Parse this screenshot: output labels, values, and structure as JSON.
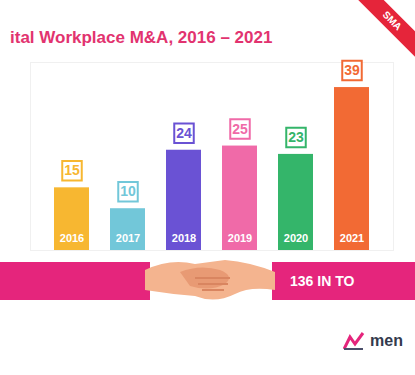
{
  "chart_data": {
    "type": "bar",
    "title": "ital Workplace M&A, 2016 – 2021",
    "categories": [
      "2016",
      "2017",
      "2018",
      "2019",
      "2020",
      "2021"
    ],
    "values": [
      15,
      10,
      24,
      25,
      23,
      39
    ],
    "colors": [
      "#f7b731",
      "#72c7d9",
      "#6a52d4",
      "#f06aa8",
      "#34b56a",
      "#f26a34"
    ],
    "ylim": [
      0,
      45
    ],
    "data_labels": true,
    "tick_labels": false,
    "grid": false,
    "annotations": [
      "136 IN TO",
      "SMA",
      "men"
    ]
  }
}
